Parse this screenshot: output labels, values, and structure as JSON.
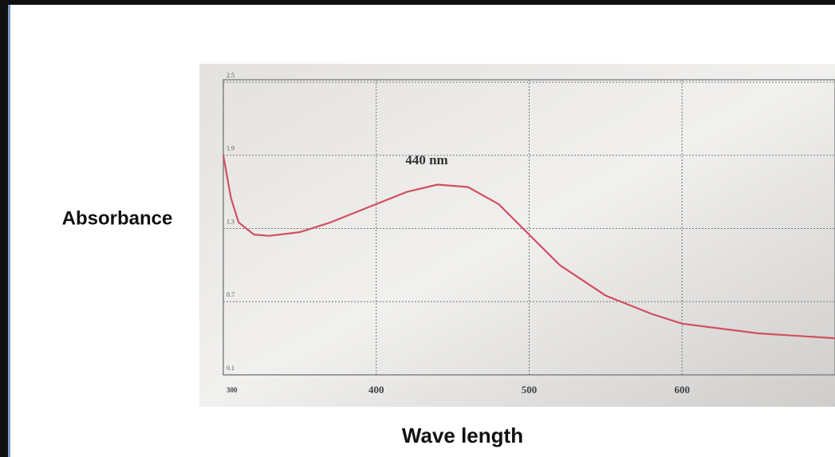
{
  "chart_data": {
    "type": "line",
    "annotation": "440 nm",
    "xlabel": "Wave length",
    "ylabel": "Absorbance",
    "x": [
      300,
      305,
      310,
      320,
      330,
      350,
      370,
      400,
      420,
      440,
      460,
      480,
      500,
      520,
      550,
      580,
      600,
      650,
      700
    ],
    "series": [
      {
        "color": "#d0505e",
        "values": [
          1.9,
          1.55,
          1.35,
          1.25,
          1.24,
          1.27,
          1.35,
          1.5,
          1.6,
          1.66,
          1.64,
          1.5,
          1.25,
          1.0,
          0.75,
          0.6,
          0.52,
          0.44,
          0.4
        ]
      }
    ],
    "xlim": [
      300,
      700
    ],
    "xticks": [
      300,
      400,
      500,
      600
    ],
    "ylim": [
      0.1,
      2.5
    ],
    "yticks": [
      0.1,
      0.7,
      1.3,
      1.9,
      2.5
    ],
    "grid": true
  }
}
